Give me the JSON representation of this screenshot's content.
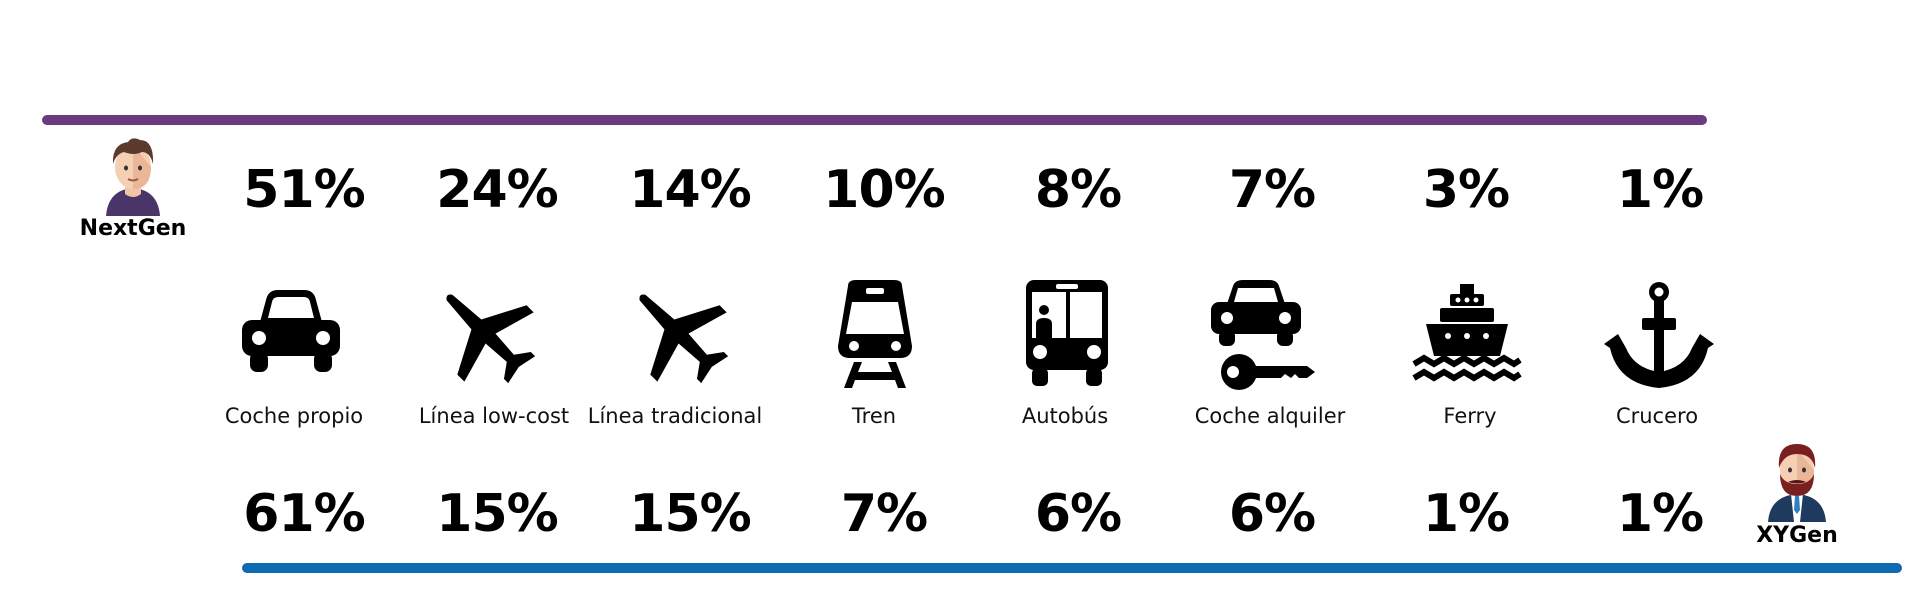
{
  "groups": {
    "nextgen": {
      "label": "NextGen",
      "color": "#6b3b7f"
    },
    "xygen": {
      "label": "XYGen",
      "color": "#0e6ab1"
    }
  },
  "chart_data": {
    "type": "table",
    "title": "",
    "categories": [
      "Coche propio",
      "Línea low-cost",
      "Línea tradicional",
      "Tren",
      "Autobús",
      "Coche alquiler",
      "Ferry",
      "Crucero"
    ],
    "icons": [
      "car-icon",
      "plane-icon",
      "plane-icon",
      "train-icon",
      "bus-icon",
      "rental-car-icon",
      "ferry-icon",
      "anchor-icon"
    ],
    "series": [
      {
        "name": "NextGen",
        "values": [
          51,
          24,
          14,
          10,
          8,
          7,
          3,
          1
        ]
      },
      {
        "name": "XYGen",
        "values": [
          61,
          15,
          15,
          7,
          6,
          6,
          1,
          1
        ]
      }
    ],
    "unit": "%"
  }
}
